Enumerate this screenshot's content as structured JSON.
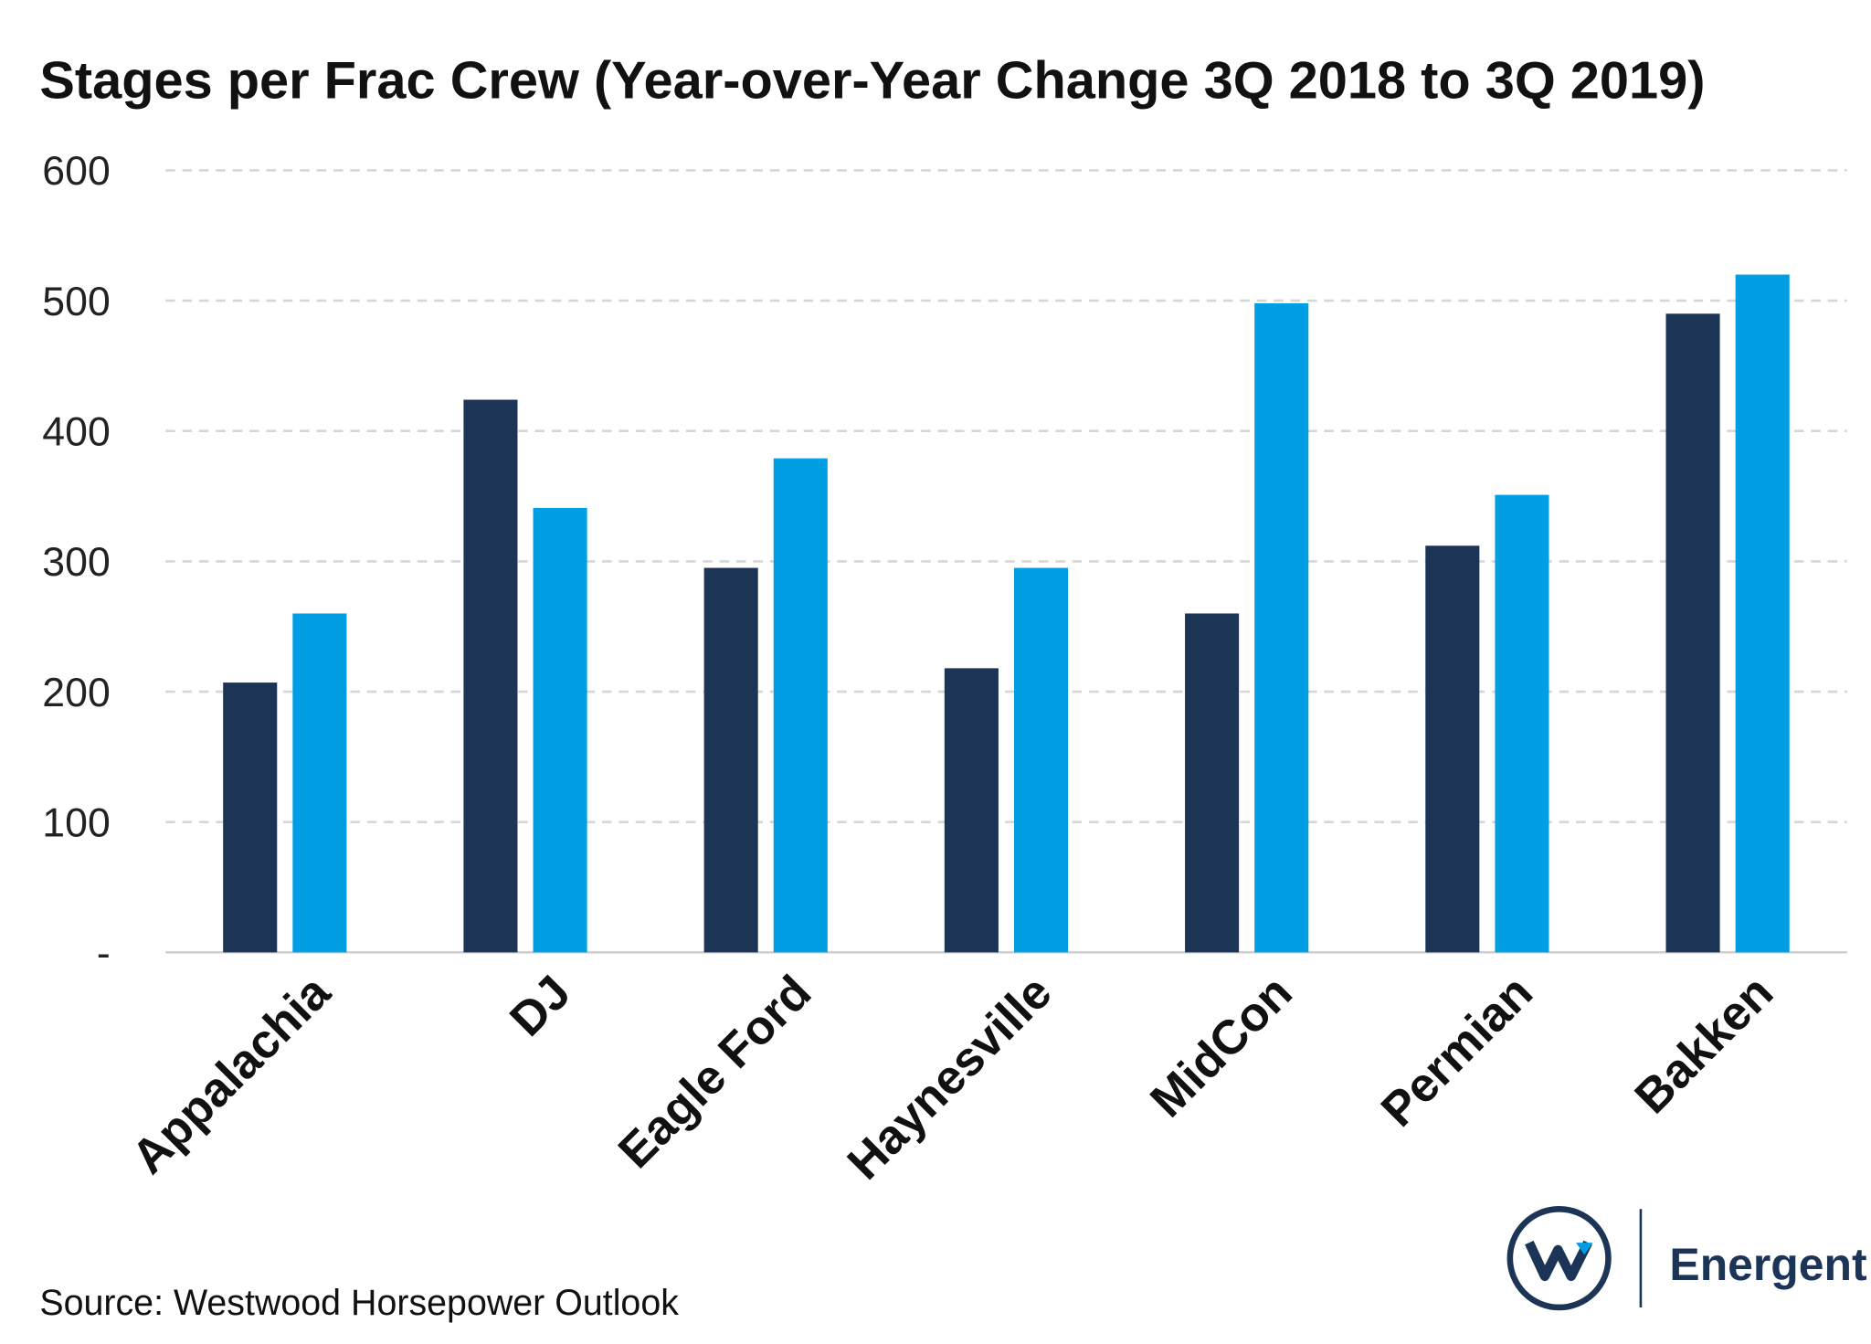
{
  "chart_data": {
    "type": "bar",
    "title": "Stages per Frac Crew (Year-over-Year Change 3Q 2018 to 3Q 2019)",
    "xlabel": "",
    "ylabel": "",
    "categories": [
      "Appalachia",
      "DJ",
      "Eagle Ford",
      "Haynesville",
      "MidCon",
      "Permian",
      "Bakken"
    ],
    "series": [
      {
        "color": "#1c3557",
        "values": [
          207,
          424,
          295,
          218,
          260,
          312,
          490
        ]
      },
      {
        "color": "#009fe3",
        "values": [
          260,
          341,
          379,
          295,
          498,
          351,
          520
        ]
      }
    ],
    "ylim": [
      0,
      600
    ],
    "yticks": [
      0,
      100,
      200,
      300,
      400,
      500,
      600
    ],
    "ytick_labels": [
      "-",
      "100",
      "200",
      "300",
      "400",
      "500",
      "600"
    ],
    "grid": "horizontal dashed",
    "legend": "none"
  },
  "source": "Source: Westwood Horsepower Outlook",
  "logo": {
    "text": "Energent",
    "mark": "W",
    "color": "#1c3557",
    "accent": "#009fe3"
  }
}
